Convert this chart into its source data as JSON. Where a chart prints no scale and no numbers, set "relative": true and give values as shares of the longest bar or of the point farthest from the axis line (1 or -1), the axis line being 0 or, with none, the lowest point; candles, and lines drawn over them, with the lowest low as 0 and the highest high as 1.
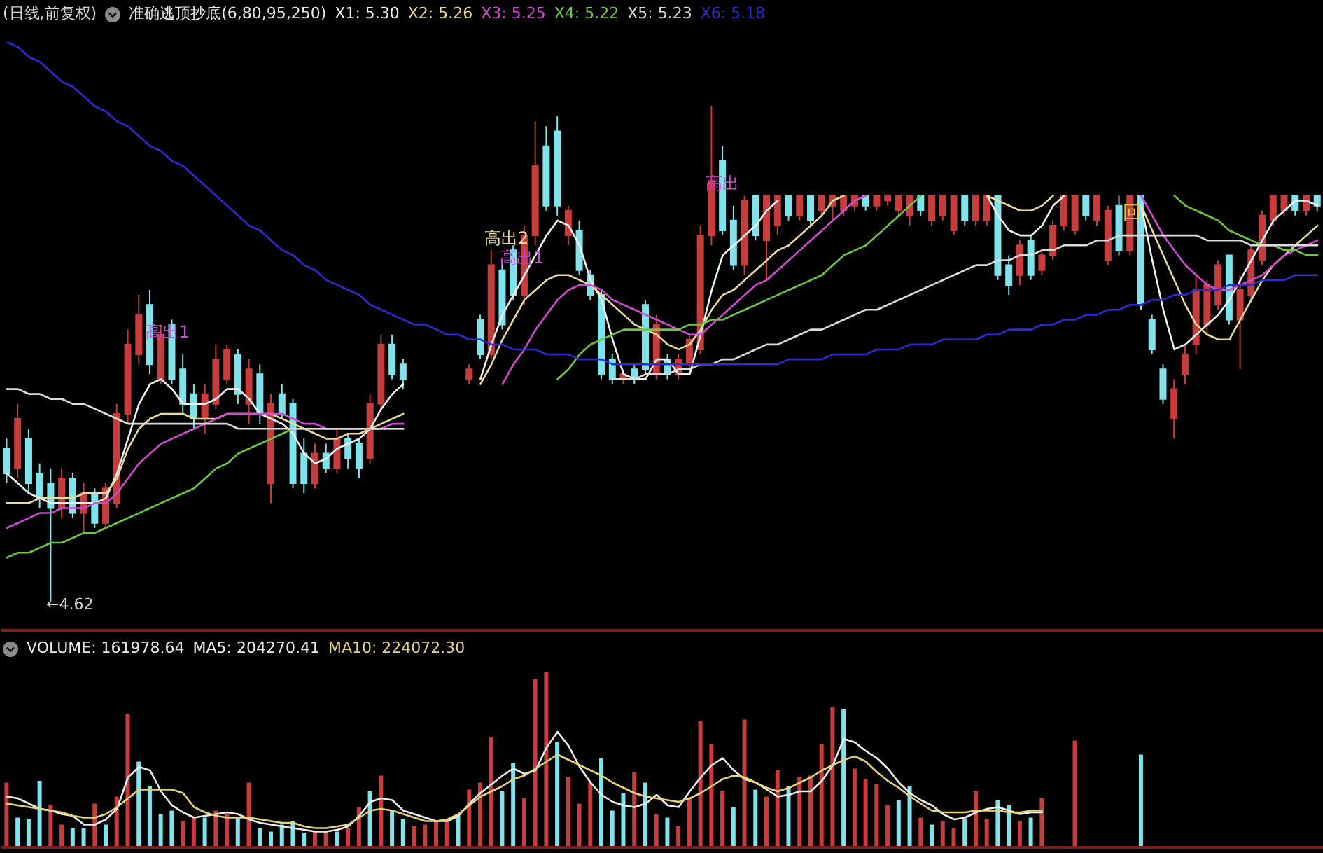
{
  "chart_data": [
    {
      "type": "candlestick",
      "title": "准确逃顶抄底(6,80,95,250)",
      "relative": true,
      "categories": [
        null,
        null,
        null,
        null,
        null,
        null,
        null,
        null,
        null,
        null,
        null,
        null,
        null,
        null,
        null,
        null,
        null,
        null,
        null,
        null,
        null,
        null,
        null,
        null,
        null,
        null,
        null,
        null,
        null,
        null,
        null,
        null,
        null,
        null,
        null,
        null,
        null,
        null,
        null,
        null,
        null,
        null,
        null,
        null,
        null,
        null,
        null,
        null,
        null,
        null,
        null,
        null,
        null,
        null,
        null,
        null,
        null,
        null,
        null,
        null,
        null,
        null,
        null,
        null,
        null,
        null,
        null,
        null,
        null,
        null,
        null,
        null,
        null,
        null,
        null,
        null,
        null,
        null,
        null,
        null,
        null,
        null,
        null,
        null,
        null,
        null,
        null,
        null,
        null,
        null,
        null,
        null,
        null,
        null,
        null,
        null,
        null,
        null,
        null,
        null,
        null,
        null,
        null,
        null,
        null,
        null,
        null,
        null,
        null,
        null,
        null,
        null,
        null,
        null,
        null,
        null,
        null,
        null,
        null,
        null
      ],
      "ohlc": [
        [
          0.31,
          0.33,
          0.24,
          0.26
        ],
        [
          0.27,
          0.4,
          0.25,
          0.37
        ],
        [
          0.33,
          0.35,
          0.22,
          0.24
        ],
        [
          0.26,
          0.28,
          0.19,
          0.21
        ],
        [
          0.24,
          0.27,
          0,
          0.19
        ],
        [
          0.19,
          0.27,
          0.17,
          0.25
        ],
        [
          0.25,
          0.26,
          0.17,
          0.18
        ],
        [
          0.18,
          0.24,
          0.14,
          0.22
        ],
        [
          0.22,
          0.23,
          0.15,
          0.16
        ],
        [
          0.16,
          0.24,
          0.15,
          0.23
        ],
        [
          0.2,
          0.4,
          0.19,
          0.38
        ],
        [
          0.38,
          0.55,
          0.36,
          0.52
        ],
        [
          0.5,
          0.62,
          0.48,
          0.58
        ],
        [
          0.6,
          0.63,
          0.46,
          0.48
        ],
        [
          0.45,
          0.56,
          0.44,
          0.54
        ],
        [
          0.56,
          0.57,
          0.44,
          0.45
        ],
        [
          0.47,
          0.5,
          0.38,
          0.4
        ],
        [
          0.42,
          0.44,
          0.35,
          0.37
        ],
        [
          0.37,
          0.44,
          0.34,
          0.42
        ],
        [
          0.4,
          0.52,
          0.39,
          0.49
        ],
        [
          0.45,
          0.52,
          0.44,
          0.51
        ],
        [
          0.5,
          0.51,
          0.4,
          0.42
        ],
        [
          0.4,
          0.49,
          0.36,
          0.47
        ],
        [
          0.46,
          0.48,
          0.36,
          0.38
        ],
        [
          0.24,
          0.42,
          0.2,
          0.4
        ],
        [
          0.42,
          0.44,
          0.37,
          0.38
        ],
        [
          0.4,
          0.41,
          0.23,
          0.24
        ],
        [
          0.3,
          0.33,
          0.22,
          0.24
        ],
        [
          0.24,
          0.32,
          0.23,
          0.3
        ],
        [
          0.3,
          0.32,
          0.26,
          0.27
        ],
        [
          0.27,
          0.35,
          0.26,
          0.33
        ],
        [
          0.33,
          0.34,
          0.27,
          0.29
        ],
        [
          0.32,
          0.33,
          0.25,
          0.27
        ],
        [
          0.29,
          0.42,
          0.28,
          0.4
        ],
        [
          0.4,
          0.54,
          0.39,
          0.52
        ],
        [
          0.52,
          0.54,
          0.45,
          0.46
        ],
        [
          0.48,
          0.49,
          0.43,
          0.45
        ],
        null,
        null,
        null,
        null,
        null,
        [
          0.45,
          0.48,
          0.44,
          0.47
        ],
        [
          0.57,
          0.58,
          0.49,
          0.5
        ],
        [
          0.5,
          0.71,
          0.49,
          0.68
        ],
        [
          0.67,
          0.69,
          0.55,
          0.56
        ],
        [
          0.71,
          0.72,
          0.61,
          0.62
        ],
        [
          0.62,
          0.76,
          0.6,
          0.74
        ],
        [
          0.74,
          0.97,
          0.72,
          0.88
        ],
        [
          0.92,
          0.96,
          0.79,
          0.8
        ],
        [
          0.95,
          0.98,
          0.78,
          0.8
        ],
        [
          0.74,
          0.8,
          0.72,
          0.79
        ],
        [
          0.75,
          0.77,
          0.66,
          0.67
        ],
        [
          0.66,
          0.67,
          0.61,
          0.62
        ],
        [
          0.62,
          0.63,
          0.45,
          0.46
        ],
        [
          0.49,
          0.5,
          0.44,
          0.45
        ],
        [
          0.45,
          0.47,
          0.44,
          0.46
        ],
        [
          0.47,
          0.48,
          0.44,
          0.45
        ],
        [
          0.6,
          0.61,
          0.46,
          0.47
        ],
        [
          0.46,
          0.58,
          0.45,
          0.56
        ],
        [
          0.49,
          0.5,
          0.45,
          0.46
        ],
        [
          0.46,
          0.5,
          0.45,
          0.49
        ],
        [
          0.48,
          0.54,
          0.47,
          0.53
        ],
        [
          0.51,
          0.76,
          0.5,
          0.74
        ],
        [
          0.74,
          1,
          0.72,
          0.85
        ],
        [
          0.89,
          0.92,
          0.74,
          0.75
        ],
        [
          0.77,
          0.8,
          0.67,
          0.68
        ],
        [
          0.68,
          0.82,
          0.66,
          0.81
        ],
        [
          0.82,
          0.82,
          0.73,
          0.74
        ],
        [
          0.73,
          0.82,
          0.65,
          0.82
        ],
        [
          0.76,
          0.82,
          0.74,
          0.82
        ],
        [
          0.82,
          0.82,
          0.77,
          0.78
        ],
        [
          0.78,
          0.82,
          0.77,
          0.82
        ],
        [
          0.82,
          0.82,
          0.76,
          0.77
        ],
        [
          0.79,
          0.82,
          0.78,
          0.82
        ],
        [
          0.8,
          0.82,
          0.77,
          0.82
        ],
        [
          0.79,
          0.82,
          0.78,
          0.82
        ],
        [
          0.8,
          0.82,
          0.79,
          0.82
        ],
        [
          0.82,
          0.82,
          0.79,
          0.8
        ],
        [
          0.8,
          0.82,
          0.79,
          0.82
        ],
        [
          0.81,
          0.82,
          0.8,
          0.82
        ],
        [
          0.79,
          0.82,
          0.78,
          0.82
        ],
        [
          0.78,
          0.82,
          0.76,
          0.82
        ],
        [
          0.82,
          0.82,
          0.78,
          0.79
        ],
        [
          0.77,
          0.82,
          0.76,
          0.82
        ],
        [
          0.78,
          0.82,
          0.77,
          0.82
        ],
        [
          0.75,
          0.82,
          0.74,
          0.82
        ],
        [
          0.82,
          0.82,
          0.76,
          0.77
        ],
        [
          0.77,
          0.82,
          0.76,
          0.82
        ],
        [
          0.77,
          0.82,
          0.76,
          0.82
        ],
        [
          0.82,
          0.82,
          0.65,
          0.66
        ],
        [
          0.68,
          0.7,
          0.62,
          0.64
        ],
        [
          0.66,
          0.73,
          0.64,
          0.72
        ],
        [
          0.73,
          0.74,
          0.65,
          0.66
        ],
        [
          0.67,
          0.71,
          0.66,
          0.7
        ],
        [
          0.7,
          0.77,
          0.69,
          0.76
        ],
        [
          0.76,
          0.82,
          0.75,
          0.82
        ],
        [
          0.75,
          0.82,
          0.74,
          0.82
        ],
        [
          0.82,
          0.82,
          0.77,
          0.78
        ],
        [
          0.77,
          0.82,
          0.76,
          0.82
        ],
        [
          0.69,
          0.8,
          0.68,
          0.79
        ],
        [
          0.8,
          0.82,
          0.7,
          0.71
        ],
        [
          0.71,
          0.82,
          0.7,
          0.82
        ],
        [
          0.82,
          0.82,
          0.59,
          0.6
        ],
        [
          0.57,
          0.58,
          0.5,
          0.51
        ],
        [
          0.47,
          0.48,
          0.4,
          0.41
        ],
        [
          0.37,
          0.45,
          0.33,
          0.43
        ],
        [
          0.46,
          0.52,
          0.44,
          0.5
        ],
        [
          0.52,
          0.66,
          0.5,
          0.63
        ],
        [
          0.56,
          0.65,
          0.54,
          0.64
        ],
        [
          0.6,
          0.69,
          0.59,
          0.68
        ],
        [
          0.7,
          0.7,
          0.56,
          0.57
        ],
        [
          0.57,
          0.66,
          0.47,
          0.63
        ],
        [
          0.62,
          0.72,
          0.61,
          0.71
        ],
        [
          0.69,
          0.79,
          0.68,
          0.78
        ],
        [
          0.77,
          0.82,
          0.76,
          0.82
        ],
        [
          0.79,
          0.82,
          0.78,
          0.82
        ],
        [
          0.82,
          0.82,
          0.78,
          0.79
        ],
        [
          0.79,
          0.82,
          0.78,
          0.82
        ],
        [
          0.82,
          0.82,
          0.79,
          0.8
        ]
      ],
      "colors": [
        "#7fe3ec",
        "#c83c3c",
        "#7fe3ec",
        "#7fe3ec",
        "#7fe3ec",
        "#c83c3c",
        "#7fe3ec",
        "#c83c3c",
        "#7fe3ec",
        "#c83c3c",
        "#c83c3c",
        "#c83c3c",
        "#c83c3c",
        "#7fe3ec",
        "#c83c3c",
        "#7fe3ec",
        "#7fe3ec",
        "#7fe3ec",
        "#c83c3c",
        "#c83c3c",
        "#c83c3c",
        "#7fe3ec",
        "#c83c3c",
        "#7fe3ec",
        "#c83c3c",
        "#7fe3ec",
        "#7fe3ec",
        "#7fe3ec",
        "#c83c3c",
        "#7fe3ec",
        "#c83c3c",
        "#7fe3ec",
        "#7fe3ec",
        "#c83c3c",
        "#c83c3c",
        "#7fe3ec",
        "#7fe3ec",
        null,
        null,
        null,
        null,
        null,
        "#c83c3c",
        "#7fe3ec",
        "#c83c3c",
        "#7fe3ec",
        "#7fe3ec",
        "#c83c3c",
        "#c83c3c",
        "#7fe3ec",
        "#7fe3ec",
        "#c83c3c",
        "#7fe3ec",
        "#7fe3ec",
        "#7fe3ec",
        "#7fe3ec",
        "#c83c3c",
        "#7fe3ec",
        "#7fe3ec",
        "#c83c3c",
        "#7fe3ec",
        "#c83c3c",
        "#c83c3c",
        "#c83c3c",
        "#c83c3c",
        "#7fe3ec",
        "#7fe3ec",
        "#c83c3c",
        "#7fe3ec",
        "#c83c3c",
        "#c83c3c",
        "#7fe3ec",
        "#c83c3c",
        "#7fe3ec",
        "#c83c3c",
        "#c83c3c",
        "#c83c3c",
        "#c83c3c",
        "#7fe3ec",
        "#c83c3c",
        "#c83c3c",
        "#c83c3c",
        "#c83c3c",
        "#7fe3ec",
        "#c83c3c",
        "#c83c3c",
        "#c83c3c",
        "#7fe3ec",
        "#c83c3c",
        "#c83c3c",
        "#7fe3ec",
        "#7fe3ec",
        "#c83c3c",
        "#7fe3ec",
        "#c83c3c",
        "#c83c3c",
        "#c83c3c",
        "#c83c3c",
        "#7fe3ec",
        "#c83c3c",
        "#c83c3c",
        "#7fe3ec",
        "#c83c3c",
        "#7fe3ec",
        "#7fe3ec",
        "#7fe3ec",
        "#c83c3c",
        "#c83c3c",
        "#c83c3c",
        "#c83c3c",
        "#c83c3c",
        "#7fe3ec",
        "#c83c3c",
        "#c83c3c",
        "#c83c3c",
        "#c83c3c",
        "#c83c3c",
        "#7fe3ec",
        "#c83c3c",
        "#7fe3ec"
      ],
      "series": [
        {
          "name": "X1: 5.30",
          "type": "line",
          "color": "#f2f2f2",
          "values": [
            0.26,
            0.24,
            0.22,
            0.21,
            0.2,
            0.2,
            0.2,
            0.2,
            0.2,
            0.21,
            0.26,
            0.33,
            0.4,
            0.44,
            0.45,
            0.43,
            0.4,
            0.4,
            0.4,
            0.41,
            0.43,
            0.43,
            0.41,
            0.38,
            0.37,
            0.36,
            0.34,
            0.3,
            0.28,
            0.29,
            0.31,
            0.32,
            0.33,
            0.35,
            0.39,
            0.42,
            0.44,
            null,
            null,
            null,
            null,
            null,
            null,
            0.45,
            0.52,
            0.58,
            0.62,
            0.66,
            0.7,
            0.74,
            0.77,
            0.76,
            0.72,
            0.65,
            0.61,
            0.53,
            0.46,
            0.45,
            0.45,
            0.49,
            0.49,
            0.46,
            0.46,
            0.54,
            0.63,
            0.7,
            0.72,
            0.74,
            0.76,
            0.79,
            0.81,
            null,
            null,
            null,
            null,
            null,
            null,
            null,
            null,
            null,
            null,
            null,
            null,
            null,
            null,
            null,
            null,
            null,
            null,
            0.82,
            0.78,
            0.75,
            0.74,
            0.74,
            0.76,
            0.8,
            0.82,
            null,
            null,
            null,
            null,
            null,
            null,
            0.8,
            0.69,
            0.59,
            0.51,
            0.52,
            0.54,
            0.56,
            0.58,
            0.61,
            0.65,
            0.69,
            0.73,
            0.77,
            0.79,
            0.81,
            0.81,
            0.8
          ]
        },
        {
          "name": "X2: 5.26",
          "type": "line",
          "color": "#eadb9a",
          "values": [
            0.2,
            0.2,
            0.2,
            0.21,
            0.21,
            0.21,
            0.21,
            0.22,
            0.22,
            0.22,
            0.25,
            0.31,
            0.35,
            0.37,
            0.38,
            0.38,
            0.38,
            0.37,
            0.37,
            0.37,
            0.38,
            0.38,
            0.38,
            0.38,
            0.38,
            0.37,
            0.36,
            0.35,
            0.34,
            0.33,
            0.33,
            0.34,
            0.34,
            0.35,
            0.36,
            0.37,
            0.38,
            null,
            null,
            null,
            null,
            null,
            null,
            0.44,
            0.48,
            0.53,
            0.57,
            0.61,
            0.63,
            0.65,
            0.66,
            0.66,
            0.65,
            0.64,
            0.62,
            0.6,
            0.58,
            0.56,
            0.55,
            0.54,
            0.52,
            0.51,
            0.52,
            0.55,
            0.59,
            0.62,
            0.63,
            0.65,
            0.67,
            0.69,
            0.71,
            0.72,
            0.74,
            0.76,
            0.78,
            0.81,
            0.82,
            null,
            null,
            null,
            null,
            null,
            null,
            null,
            null,
            null,
            null,
            null,
            null,
            0.82,
            0.81,
            0.8,
            0.79,
            0.79,
            0.8,
            0.82,
            null,
            null,
            null,
            null,
            null,
            null,
            null,
            0.8,
            0.75,
            0.7,
            0.65,
            0.6,
            0.56,
            0.54,
            0.53,
            0.53,
            0.57,
            0.61,
            0.65,
            0.68,
            0.7,
            0.72,
            0.74,
            0.76
          ]
        },
        {
          "name": "X3: 5.25",
          "type": "line",
          "color": "#d24ad2",
          "values": [
            0.15,
            0.16,
            0.17,
            0.18,
            0.18,
            0.19,
            0.19,
            0.19,
            0.2,
            0.2,
            0.22,
            0.25,
            0.28,
            0.3,
            0.32,
            0.33,
            0.34,
            0.35,
            0.36,
            0.37,
            0.38,
            0.38,
            0.38,
            0.38,
            0.38,
            0.38,
            0.37,
            0.36,
            0.36,
            0.35,
            0.35,
            0.35,
            0.35,
            0.35,
            0.35,
            0.36,
            0.36,
            null,
            null,
            null,
            null,
            null,
            null,
            null,
            null,
            0.44,
            0.48,
            0.51,
            0.55,
            0.58,
            0.61,
            0.63,
            0.64,
            0.64,
            0.63,
            0.61,
            0.6,
            0.59,
            0.58,
            0.57,
            0.56,
            0.55,
            0.54,
            0.54,
            0.56,
            0.58,
            0.6,
            0.62,
            0.64,
            0.65,
            0.67,
            0.69,
            0.71,
            0.73,
            0.75,
            0.77,
            0.79,
            0.81,
            0.82,
            null,
            null,
            null,
            null,
            null,
            null,
            null,
            null,
            null,
            null,
            null,
            null,
            null,
            null,
            null,
            null,
            null,
            null,
            null,
            null,
            null,
            null,
            null,
            null,
            0.82,
            0.78,
            0.74,
            0.71,
            0.68,
            0.66,
            0.64,
            0.63,
            0.63,
            0.64,
            0.65,
            0.66,
            0.68,
            0.7,
            0.71,
            0.72,
            0.73
          ]
        },
        {
          "name": "X4: 5.22",
          "type": "line",
          "color": "#6cc83c",
          "values": [
            0.09,
            0.1,
            0.1,
            0.11,
            0.12,
            0.12,
            0.13,
            0.14,
            0.14,
            0.15,
            0.16,
            0.17,
            0.18,
            0.19,
            0.2,
            0.21,
            0.22,
            0.23,
            0.25,
            0.27,
            0.28,
            0.3,
            0.31,
            0.32,
            0.33,
            0.34,
            0.35,
            0.35,
            0.35,
            0.35,
            0.35,
            0.35,
            0.35,
            0.35,
            0.35,
            0.35,
            0.35,
            null,
            null,
            null,
            null,
            null,
            null,
            null,
            null,
            null,
            null,
            null,
            null,
            null,
            0.45,
            0.47,
            0.5,
            0.52,
            0.53,
            0.54,
            0.55,
            0.55,
            0.55,
            0.55,
            0.55,
            0.55,
            0.56,
            0.56,
            0.57,
            0.57,
            0.58,
            0.59,
            0.6,
            0.61,
            0.62,
            0.63,
            0.64,
            0.65,
            0.66,
            0.68,
            0.7,
            0.71,
            0.72,
            0.74,
            0.76,
            0.78,
            0.8,
            0.82,
            null,
            null,
            null,
            null,
            null,
            null,
            null,
            null,
            null,
            null,
            null,
            null,
            null,
            null,
            null,
            null,
            null,
            null,
            null,
            null,
            null,
            null,
            0.82,
            0.8,
            0.79,
            0.78,
            0.77,
            0.75,
            0.74,
            0.73,
            0.72,
            0.72,
            0.71,
            0.71,
            0.7,
            0.7
          ]
        },
        {
          "name": "X5: 5.23",
          "type": "line",
          "color": "#dcdcdc",
          "values": [
            0.43,
            0.43,
            0.42,
            0.42,
            0.41,
            0.41,
            0.4,
            0.4,
            0.39,
            0.38,
            0.37,
            0.36,
            0.36,
            0.36,
            0.36,
            0.36,
            0.36,
            0.36,
            0.36,
            0.36,
            0.36,
            0.35,
            0.35,
            0.35,
            0.35,
            0.35,
            0.35,
            0.35,
            0.35,
            0.35,
            0.35,
            0.35,
            0.35,
            0.35,
            0.35,
            0.35,
            0.35,
            null,
            null,
            null,
            null,
            null,
            null,
            null,
            null,
            null,
            null,
            null,
            null,
            null,
            null,
            null,
            null,
            null,
            null,
            0.45,
            0.45,
            0.45,
            0.46,
            0.46,
            0.46,
            0.47,
            0.47,
            0.48,
            0.48,
            0.49,
            0.49,
            0.5,
            0.51,
            0.52,
            0.52,
            0.53,
            0.54,
            0.55,
            0.55,
            0.56,
            0.57,
            0.58,
            0.59,
            0.59,
            0.6,
            0.61,
            0.62,
            0.63,
            0.64,
            0.65,
            0.66,
            0.67,
            0.68,
            0.68,
            0.69,
            0.69,
            0.7,
            0.7,
            0.71,
            0.71,
            0.72,
            0.72,
            0.72,
            0.73,
            0.73,
            0.74,
            0.74,
            0.74,
            0.74,
            0.74,
            0.74,
            0.74,
            0.74,
            0.73,
            0.73,
            0.73,
            0.73,
            0.72,
            0.72,
            0.72,
            0.72,
            0.72,
            0.72,
            0.72
          ]
        },
        {
          "name": "X6: 5.18",
          "type": "line",
          "color": "#2c2cd2",
          "values": [
            1.13,
            1.12,
            1.1,
            1.09,
            1.07,
            1.05,
            1.04,
            1.02,
            1,
            0.99,
            0.97,
            0.96,
            0.94,
            0.92,
            0.91,
            0.89,
            0.88,
            0.86,
            0.84,
            0.82,
            0.8,
            0.78,
            0.76,
            0.75,
            0.73,
            0.71,
            0.7,
            0.68,
            0.67,
            0.65,
            0.64,
            0.63,
            0.62,
            0.6,
            0.59,
            0.58,
            0.57,
            0.56,
            0.56,
            0.55,
            0.54,
            0.54,
            0.53,
            0.53,
            0.52,
            0.52,
            0.51,
            0.51,
            0.51,
            0.5,
            0.5,
            0.5,
            0.49,
            0.49,
            0.49,
            0.48,
            0.48,
            0.48,
            0.48,
            0.48,
            0.48,
            0.48,
            0.48,
            0.48,
            0.48,
            0.48,
            0.48,
            0.48,
            0.48,
            0.48,
            0.48,
            0.49,
            0.49,
            0.49,
            0.49,
            0.5,
            0.5,
            0.5,
            0.5,
            0.51,
            0.51,
            0.51,
            0.52,
            0.52,
            0.52,
            0.53,
            0.53,
            0.53,
            0.53,
            0.54,
            0.54,
            0.55,
            0.55,
            0.55,
            0.56,
            0.56,
            0.57,
            0.57,
            0.58,
            0.58,
            0.59,
            0.59,
            0.6,
            0.6,
            0.61,
            0.61,
            0.62,
            0.62,
            0.63,
            0.63,
            0.63,
            0.64,
            0.64,
            0.64,
            0.65,
            0.65,
            0.65,
            0.66,
            0.66,
            0.66
          ]
        }
      ],
      "annotations": [
        "(日线,前复权)",
        "←4.62",
        "高出1",
        "高出2",
        "高出1",
        "高出",
        "回"
      ]
    },
    {
      "type": "bar",
      "title": "VOLUME: 161978.64",
      "relative": true,
      "categories": [
        null,
        null,
        null,
        null,
        null,
        null,
        null,
        null,
        null,
        null,
        null,
        null,
        null,
        null,
        null,
        null,
        null,
        null,
        null,
        null,
        null,
        null,
        null,
        null,
        null,
        null,
        null,
        null,
        null,
        null,
        null,
        null,
        null,
        null,
        null,
        null,
        null,
        null,
        null,
        null,
        null,
        null,
        null,
        null,
        null,
        null,
        null,
        null,
        null,
        null,
        null,
        null,
        null,
        null,
        null,
        null,
        null,
        null,
        null,
        null,
        null,
        null,
        null,
        null,
        null,
        null,
        null,
        null,
        null,
        null,
        null,
        null,
        null,
        null,
        null,
        null,
        null,
        null,
        null,
        null,
        null,
        null,
        null,
        null,
        null,
        null,
        null,
        null,
        null,
        null,
        null,
        null,
        null,
        null,
        null,
        null,
        null,
        null,
        null,
        null,
        null,
        null,
        null,
        null,
        null,
        null,
        null,
        null,
        null,
        null,
        null,
        null,
        null,
        null,
        null,
        null,
        null,
        null,
        null,
        null
      ],
      "series": [
        {
          "type": "bar",
          "values": [
            0.37,
            0.17,
            0.16,
            0.38,
            0.24,
            0.13,
            0.11,
            0.11,
            0.25,
            0.13,
            0.29,
            0.76,
            0.49,
            0.35,
            0.19,
            0.21,
            0.15,
            0.17,
            0.17,
            0.21,
            0.19,
            0.17,
            0.37,
            0.11,
            0.09,
            0.13,
            0.15,
            0.08,
            0.09,
            0.09,
            0.09,
            0.11,
            0.23,
            0.32,
            0.41,
            0.21,
            0.16,
            0.12,
            0.13,
            0.15,
            0.15,
            0.19,
            0.33,
            0.37,
            0.63,
            0.32,
            0.48,
            0.28,
            0.96,
            1,
            0.6,
            0.4,
            0.25,
            0.37,
            0.51,
            0.21,
            0.31,
            0.43,
            0.37,
            0.19,
            0.17,
            0.12,
            0.28,
            0.72,
            0.59,
            0.32,
            0.23,
            0.73,
            0.33,
            0.29,
            0.44,
            0.35,
            0.4,
            0.41,
            0.59,
            0.8,
            0.79,
            0.45,
            0.39,
            0.36,
            0.24,
            0.27,
            0.35,
            0.17,
            0.13,
            0.15,
            0.11,
            0.16,
            0.32,
            0.16,
            0.27,
            0.24,
            0.15,
            0.17,
            0.28,
            null,
            null,
            0.61,
            null,
            null,
            null,
            null,
            null,
            0.53,
            null,
            null,
            null,
            null,
            null,
            null,
            null,
            null,
            null,
            null,
            null,
            null,
            null,
            null,
            null,
            null
          ],
          "colors": [
            "#c83c3c",
            "#7fe3ec",
            "#7fe3ec",
            "#7fe3ec",
            "#c83c3c",
            "#c83c3c",
            "#7fe3ec",
            "#7fe3ec",
            "#c83c3c",
            "#7fe3ec",
            "#c83c3c",
            "#c83c3c",
            "#7fe3ec",
            "#7fe3ec",
            "#7fe3ec",
            "#7fe3ec",
            "#c83c3c",
            "#c83c3c",
            "#7fe3ec",
            "#c83c3c",
            "#c83c3c",
            "#7fe3ec",
            "#c83c3c",
            "#7fe3ec",
            "#7fe3ec",
            "#7fe3ec",
            "#7fe3ec",
            "#7fe3ec",
            "#c83c3c",
            "#c83c3c",
            "#7fe3ec",
            "#c83c3c",
            "#c83c3c",
            "#7fe3ec",
            "#c83c3c",
            "#7fe3ec",
            "#7fe3ec",
            "#c83c3c",
            "#c83c3c",
            "#c83c3c",
            "#c83c3c",
            "#7fe3ec",
            "#c83c3c",
            "#c83c3c",
            "#c83c3c",
            "#7fe3ec",
            "#7fe3ec",
            "#c83c3c",
            "#c83c3c",
            "#c83c3c",
            "#7fe3ec",
            "#c83c3c",
            "#c83c3c",
            "#c83c3c",
            "#7fe3ec",
            "#7fe3ec",
            "#7fe3ec",
            "#c83c3c",
            "#7fe3ec",
            "#c83c3c",
            "#7fe3ec",
            "#c83c3c",
            "#c83c3c",
            "#c83c3c",
            "#c83c3c",
            "#c83c3c",
            "#7fe3ec",
            "#c83c3c",
            "#7fe3ec",
            "#c83c3c",
            "#c83c3c",
            "#7fe3ec",
            "#c83c3c",
            "#c83c3c",
            "#c83c3c",
            "#c83c3c",
            "#7fe3ec",
            "#c83c3c",
            "#c83c3c",
            "#c83c3c",
            "#c83c3c",
            "#7fe3ec",
            "#7fe3ec",
            "#c83c3c",
            "#7fe3ec",
            "#c83c3c",
            "#c83c3c",
            "#7fe3ec",
            "#c83c3c",
            "#c83c3c",
            "#7fe3ec",
            "#7fe3ec",
            "#c83c3c",
            "#7fe3ec",
            "#c83c3c",
            null,
            null,
            "#c83c3c",
            null,
            null,
            null,
            null,
            null,
            "#7fe3ec",
            null,
            null,
            null,
            null,
            null,
            null,
            null,
            null,
            null,
            null,
            null,
            null,
            null,
            null,
            null,
            null
          ]
        },
        {
          "name": "MA5: 204270.41",
          "type": "line",
          "color": "#eeeeee",
          "values": [
            0.29,
            0.28,
            0.25,
            0.22,
            0.21,
            0.19,
            0.18,
            0.13,
            0.13,
            0.16,
            0.22,
            0.4,
            0.46,
            0.44,
            0.32,
            0.24,
            0.2,
            0.17,
            0.18,
            0.19,
            0.2,
            0.19,
            0.16,
            0.14,
            0.13,
            0.12,
            0.11,
            0.1,
            0.09,
            0.09,
            0.1,
            0.12,
            0.18,
            0.26,
            0.28,
            0.27,
            0.21,
            0.19,
            0.17,
            0.15,
            0.15,
            0.18,
            0.25,
            0.31,
            0.36,
            0.41,
            0.45,
            0.42,
            0.44,
            0.57,
            0.66,
            0.58,
            0.46,
            0.37,
            0.3,
            0.26,
            0.24,
            0.23,
            0.25,
            0.3,
            0.24,
            0.23,
            0.32,
            0.4,
            0.47,
            0.51,
            0.44,
            0.39,
            0.37,
            0.33,
            0.29,
            0.3,
            0.32,
            0.32,
            0.38,
            0.47,
            0.62,
            0.6,
            0.55,
            0.51,
            0.45,
            0.37,
            0.31,
            0.27,
            0.24,
            0.19,
            0.16,
            0.17,
            0.2,
            0.22,
            0.23,
            0.21,
            0.19,
            0.2,
            0.2,
            null,
            null,
            null,
            null,
            null,
            null,
            null,
            null,
            null,
            null,
            null,
            null,
            null,
            null,
            null,
            null,
            null,
            null,
            null,
            null,
            null,
            null,
            null,
            null,
            null
          ]
        },
        {
          "name": "MA10: 224072.30",
          "type": "line",
          "color": "#e6d27a",
          "values": [
            0.25,
            0.24,
            0.23,
            0.22,
            0.21,
            0.2,
            0.18,
            0.17,
            0.17,
            0.19,
            0.23,
            0.28,
            0.33,
            0.33,
            0.33,
            0.33,
            0.31,
            0.23,
            0.2,
            0.18,
            0.17,
            0.17,
            0.17,
            0.16,
            0.15,
            0.14,
            0.14,
            0.12,
            0.11,
            0.11,
            0.12,
            0.13,
            0.17,
            0.21,
            0.22,
            0.21,
            0.19,
            0.17,
            0.15,
            0.15,
            0.16,
            0.19,
            0.24,
            0.29,
            0.32,
            0.35,
            0.39,
            0.41,
            0.45,
            0.49,
            0.53,
            0.5,
            0.47,
            0.44,
            0.41,
            0.37,
            0.34,
            0.31,
            0.29,
            0.28,
            0.27,
            0.26,
            0.28,
            0.31,
            0.35,
            0.39,
            0.41,
            0.4,
            0.37,
            0.34,
            0.32,
            0.34,
            0.37,
            0.4,
            0.44,
            0.47,
            0.5,
            0.52,
            0.49,
            0.43,
            0.38,
            0.34,
            0.29,
            0.25,
            0.21,
            0.2,
            0.2,
            0.2,
            0.21,
            0.21,
            0.21,
            0.2,
            0.2,
            0.21,
            0.21,
            null,
            null,
            null,
            null,
            null,
            null,
            null,
            null,
            null,
            null,
            null,
            null,
            null,
            null,
            null,
            null,
            null,
            null,
            null,
            null,
            null,
            null,
            null,
            null,
            null
          ]
        }
      ]
    }
  ]
}
